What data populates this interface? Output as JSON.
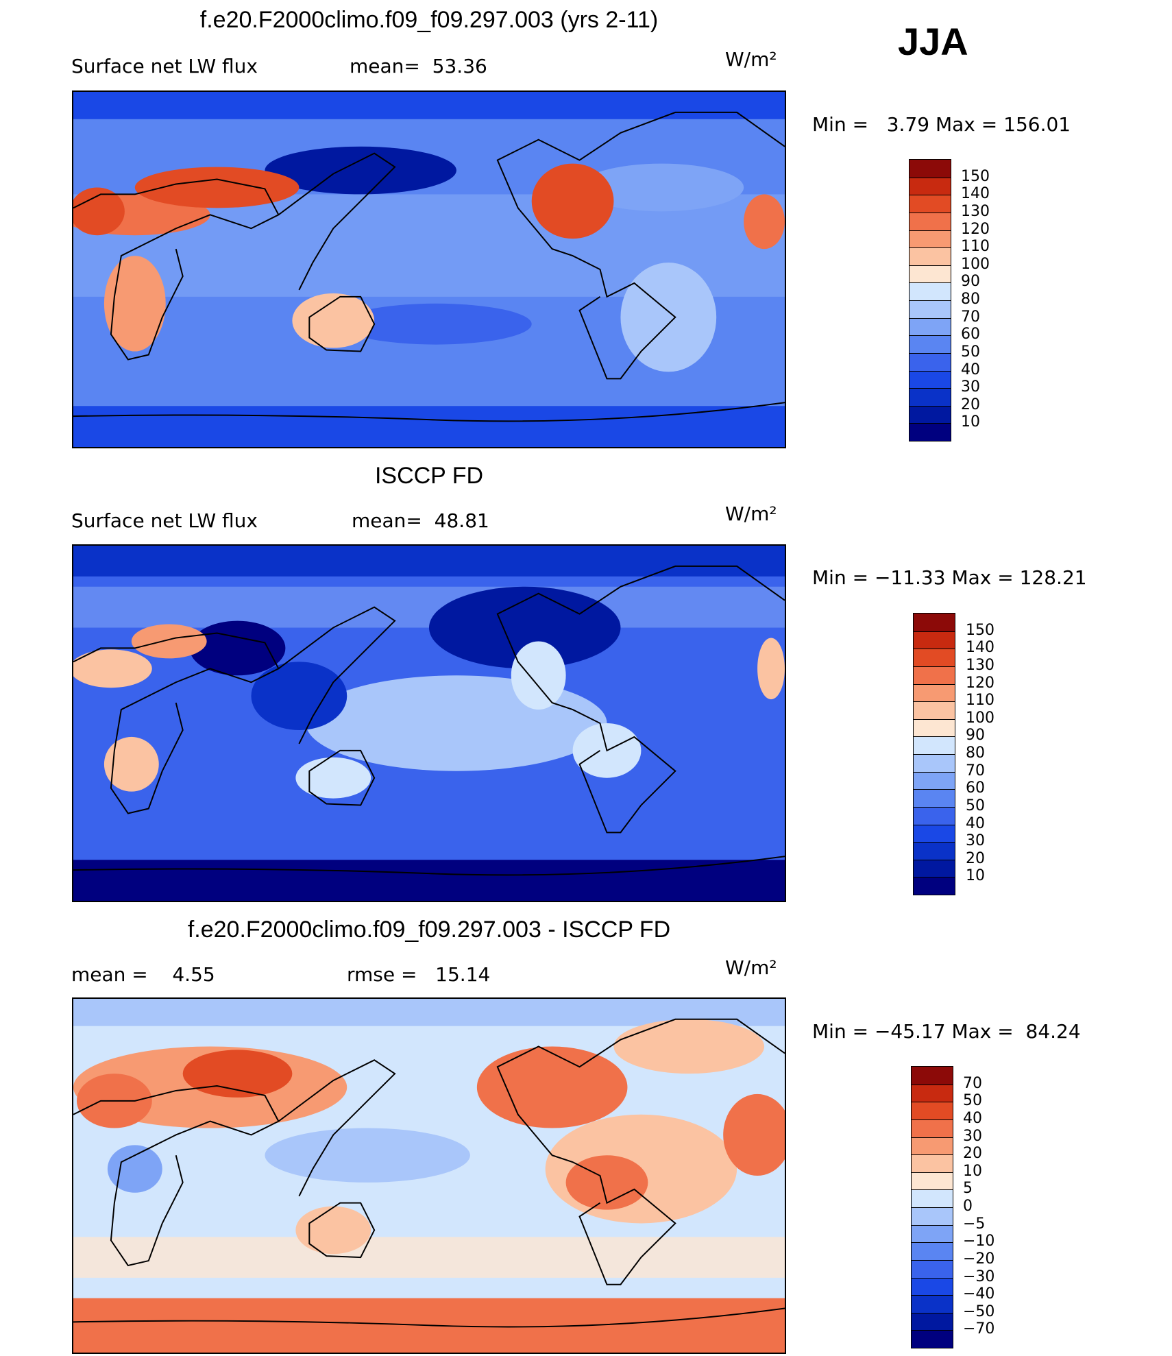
{
  "season": "JJA",
  "colors": {
    "abs_scale": [
      "#00007f",
      "#0018a0",
      "#0a32c8",
      "#1a48e6",
      "#3a63ec",
      "#5a85f2",
      "#7ea4f6",
      "#a9c6fa",
      "#d2e6fd",
      "#fde6d2",
      "#fbc3a2",
      "#f79a72",
      "#f0714a",
      "#e24b24",
      "#c82a10",
      "#8c0a08"
    ],
    "diff_scale": [
      "#00007f",
      "#0018a0",
      "#0a32c8",
      "#1a48e6",
      "#3a63ec",
      "#5a85f2",
      "#7ea4f6",
      "#a9c6fa",
      "#d2e6fd",
      "#fde6d2",
      "#fbc3a2",
      "#f79a72",
      "#f0714a",
      "#e24b24",
      "#c82a10",
      "#8c0a08"
    ],
    "ocean_abs": "#5a85f2",
    "ocean_diff": "#d2e6fd",
    "coast": "#000000"
  },
  "panels": [
    {
      "title": "f.e20.F2000climo.f09_f09.297.003 (yrs 2-11)",
      "left_label": "Surface net LW flux",
      "mid_label": "mean=  53.36",
      "units": "W/m²",
      "minmax": "Min =   3.79 Max = 156.01",
      "scale": "abs",
      "ticks": [
        "150",
        "140",
        "130",
        "120",
        "110",
        "100",
        "90",
        "80",
        "70",
        "60",
        "50",
        "40",
        "30",
        "20",
        "10"
      ]
    },
    {
      "title": "ISCCP FD",
      "left_label": "Surface net LW flux",
      "mid_label": "mean=  48.81",
      "units": "W/m²",
      "minmax": "Min = −11.33 Max = 128.21",
      "scale": "abs",
      "ticks": [
        "150",
        "140",
        "130",
        "120",
        "110",
        "100",
        "90",
        "80",
        "70",
        "60",
        "50",
        "40",
        "30",
        "20",
        "10"
      ]
    },
    {
      "title": "f.e20.F2000climo.f09_f09.297.003 - ISCCP FD",
      "left_label": "mean =    4.55",
      "mid_label": "rmse =   15.14",
      "units": "W/m²",
      "minmax": "Min = −45.17 Max =  84.24",
      "scale": "diff",
      "ticks": [
        "70",
        "50",
        "40",
        "30",
        "20",
        "10",
        "5",
        "0",
        "−5",
        "−10",
        "−20",
        "−30",
        "−40",
        "−50",
        "−70"
      ]
    }
  ]
}
